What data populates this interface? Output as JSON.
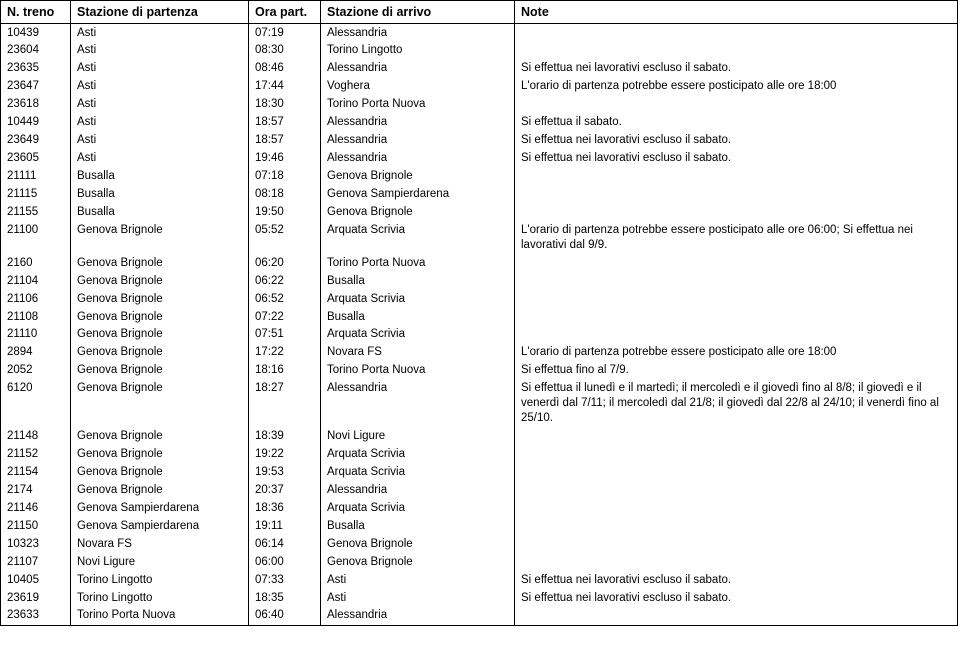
{
  "columns": [
    "N. treno",
    "Stazione di partenza",
    "Ora part.",
    "Stazione di arrivo",
    "Note"
  ],
  "rows": [
    {
      "treno": "10439",
      "part": "Asti",
      "ora": "07:19",
      "arr": "Alessandria",
      "note": ""
    },
    {
      "treno": "23604",
      "part": "Asti",
      "ora": "08:30",
      "arr": "Torino Lingotto",
      "note": ""
    },
    {
      "treno": "23635",
      "part": "Asti",
      "ora": "08:46",
      "arr": "Alessandria",
      "note": "Si effettua nei lavorativi escluso il sabato."
    },
    {
      "treno": "23647",
      "part": "Asti",
      "ora": "17:44",
      "arr": "Voghera",
      "note": "L'orario di partenza potrebbe essere posticipato alle ore 18:00"
    },
    {
      "treno": "23618",
      "part": "Asti",
      "ora": "18:30",
      "arr": "Torino Porta Nuova",
      "note": ""
    },
    {
      "treno": "10449",
      "part": "Asti",
      "ora": "18:57",
      "arr": "Alessandria",
      "note": "Si effettua il sabato."
    },
    {
      "treno": "23649",
      "part": "Asti",
      "ora": "18:57",
      "arr": "Alessandria",
      "note": "Si effettua nei lavorativi escluso il sabato."
    },
    {
      "treno": "23605",
      "part": "Asti",
      "ora": "19:46",
      "arr": "Alessandria",
      "note": "Si effettua nei lavorativi escluso il sabato."
    },
    {
      "treno": "21111",
      "part": "Busalla",
      "ora": "07:18",
      "arr": "Genova Brignole",
      "note": ""
    },
    {
      "treno": "21115",
      "part": "Busalla",
      "ora": "08:18",
      "arr": "Genova Sampierdarena",
      "note": ""
    },
    {
      "treno": "21155",
      "part": "Busalla",
      "ora": "19:50",
      "arr": "Genova Brignole",
      "note": ""
    },
    {
      "treno": "21100",
      "part": "Genova Brignole",
      "ora": "05:52",
      "arr": "Arquata Scrivia",
      "note": "L'orario di partenza potrebbe essere posticipato alle ore 06:00; Si effettua nei lavorativi dal 9/9."
    },
    {
      "treno": "2160",
      "part": "Genova Brignole",
      "ora": "06:20",
      "arr": "Torino Porta Nuova",
      "note": ""
    },
    {
      "treno": "21104",
      "part": "Genova Brignole",
      "ora": "06:22",
      "arr": "Busalla",
      "note": ""
    },
    {
      "treno": "21106",
      "part": "Genova Brignole",
      "ora": "06:52",
      "arr": "Arquata Scrivia",
      "note": ""
    },
    {
      "treno": "21108",
      "part": "Genova Brignole",
      "ora": "07:22",
      "arr": "Busalla",
      "note": ""
    },
    {
      "treno": "21110",
      "part": "Genova Brignole",
      "ora": "07:51",
      "arr": "Arquata Scrivia",
      "note": ""
    },
    {
      "treno": "2894",
      "part": "Genova Brignole",
      "ora": "17:22",
      "arr": "Novara FS",
      "note": "L'orario di partenza potrebbe essere posticipato alle ore 18:00"
    },
    {
      "treno": "2052",
      "part": "Genova Brignole",
      "ora": "18:16",
      "arr": "Torino Porta Nuova",
      "note": "Si effettua fino al 7/9."
    },
    {
      "treno": "6120",
      "part": "Genova Brignole",
      "ora": "18:27",
      "arr": "Alessandria",
      "note": "Si effettua il lunedì e il martedì; il mercoledì e il giovedì fino al 8/8; il giovedì e il venerdì dal 7/11; il mercoledì dal 21/8; il giovedì dal 22/8 al 24/10; il venerdì fino al 25/10."
    },
    {
      "treno": "21148",
      "part": "Genova Brignole",
      "ora": "18:39",
      "arr": "Novi Ligure",
      "note": ""
    },
    {
      "treno": "21152",
      "part": "Genova Brignole",
      "ora": "19:22",
      "arr": "Arquata Scrivia",
      "note": ""
    },
    {
      "treno": "21154",
      "part": "Genova Brignole",
      "ora": "19:53",
      "arr": "Arquata Scrivia",
      "note": ""
    },
    {
      "treno": "2174",
      "part": "Genova Brignole",
      "ora": "20:37",
      "arr": "Alessandria",
      "note": ""
    },
    {
      "treno": "21146",
      "part": "Genova Sampierdarena",
      "ora": "18:36",
      "arr": "Arquata Scrivia",
      "note": ""
    },
    {
      "treno": "21150",
      "part": "Genova Sampierdarena",
      "ora": "19:11",
      "arr": "Busalla",
      "note": ""
    },
    {
      "treno": "10323",
      "part": "Novara FS",
      "ora": "06:14",
      "arr": "Genova Brignole",
      "note": ""
    },
    {
      "treno": "21107",
      "part": "Novi Ligure",
      "ora": "06:00",
      "arr": "Genova Brignole",
      "note": ""
    },
    {
      "treno": "10405",
      "part": "Torino Lingotto",
      "ora": "07:33",
      "arr": "Asti",
      "note": "Si effettua nei lavorativi escluso il sabato."
    },
    {
      "treno": "23619",
      "part": "Torino Lingotto",
      "ora": "18:35",
      "arr": "Asti",
      "note": "Si effettua nei lavorativi escluso il sabato."
    },
    {
      "treno": "23633",
      "part": "Torino Porta Nuova",
      "ora": "06:40",
      "arr": "Alessandria",
      "note": ""
    }
  ]
}
